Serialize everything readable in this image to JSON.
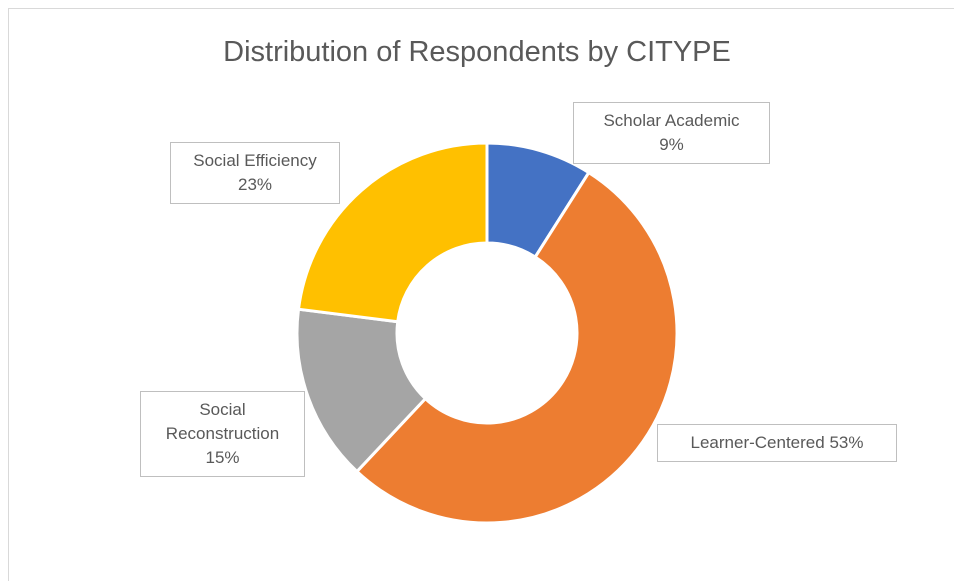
{
  "chart_data": {
    "type": "donut",
    "title": "Distribution of Respondents by CITYPE",
    "categories": [
      "Scholar Academic",
      "Learner-Centered",
      "Social Reconstruction",
      "Social Efficiency"
    ],
    "values": [
      9,
      53,
      15,
      23
    ],
    "value_labels": [
      "9%",
      "53%",
      "15%",
      "23%"
    ],
    "colors": [
      "#4472c4",
      "#ed7d31",
      "#a5a5a5",
      "#ffc000"
    ]
  }
}
